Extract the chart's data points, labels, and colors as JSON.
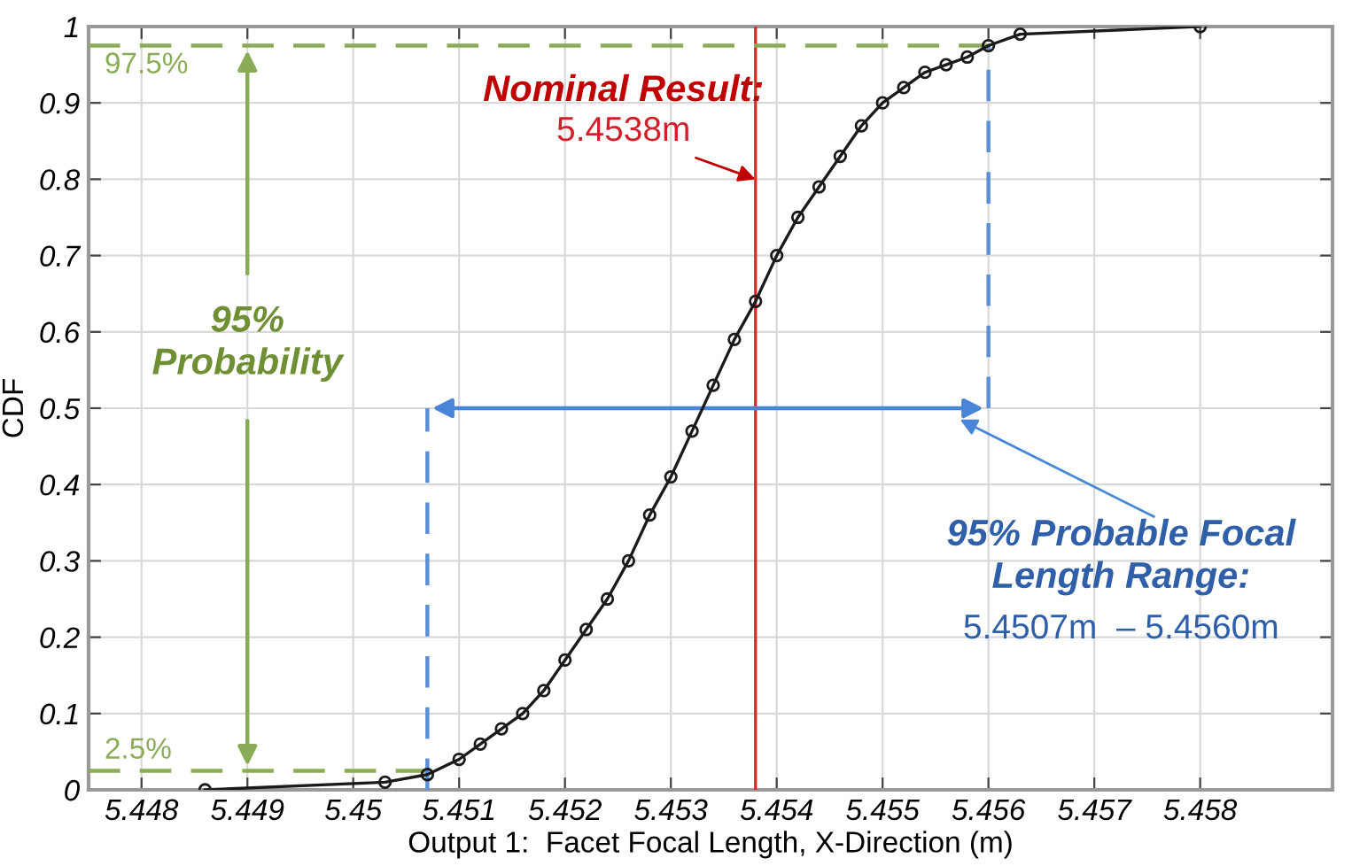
{
  "chart_data": {
    "type": "line",
    "xlabel": "Output 1:  Facet Focal Length, X-Direction (m)",
    "ylabel": "CDF",
    "series": [
      {
        "color": "#1a1a1a",
        "x": [
          5.4486,
          5.4503,
          5.4507,
          5.451,
          5.4512,
          5.4514,
          5.4516,
          5.4518,
          5.452,
          5.4522,
          5.4524,
          5.4526,
          5.4528,
          5.453,
          5.4532,
          5.4534,
          5.4536,
          5.4538,
          5.454,
          5.4542,
          5.4544,
          5.4546,
          5.4548,
          5.455,
          5.4552,
          5.4554,
          5.4556,
          5.4558,
          5.456,
          5.4563,
          5.458
        ],
        "values": [
          0.0,
          0.01,
          0.02,
          0.04,
          0.06,
          0.08,
          0.1,
          0.13,
          0.17,
          0.21,
          0.25,
          0.3,
          0.36,
          0.41,
          0.47,
          0.53,
          0.59,
          0.64,
          0.7,
          0.75,
          0.79,
          0.83,
          0.87,
          0.9,
          0.92,
          0.94,
          0.95,
          0.96,
          0.975,
          0.99,
          1.0
        ]
      }
    ],
    "xlim": [
      5.4475,
      5.45925
    ],
    "xticks": [
      5.448,
      5.449,
      5.45,
      5.451,
      5.452,
      5.453,
      5.454,
      5.455,
      5.456,
      5.457,
      5.458
    ],
    "ylim": [
      0,
      1
    ],
    "yticks": [
      0,
      0.1,
      0.2,
      0.3,
      0.4,
      0.5,
      0.6,
      0.7,
      0.8,
      0.9,
      1
    ],
    "grid": true,
    "marker": "circle",
    "line_style": "solid",
    "ref_lines": [
      {
        "axis": "x",
        "value": 5.4538,
        "color": "#e8262a",
        "line_style": "solid"
      },
      {
        "axis": "y",
        "value": 0.975,
        "label": "97.5%",
        "color": "#8aab57",
        "line_style": "dashed"
      },
      {
        "axis": "y",
        "value": 0.025,
        "label": "2.5%",
        "color": "#8aab57",
        "line_style": "dashed"
      },
      {
        "axis": "x",
        "value": 5.4507,
        "color": "#5b8fd6",
        "line_style": "dashed"
      },
      {
        "axis": "x",
        "value": 5.456,
        "color": "#5b8fd6",
        "line_style": "dashed"
      }
    ],
    "annotations": [
      "Nominal Result:",
      {
        "text": "5.4538m",
        "x": 5.4538,
        "y": 0.8
      },
      "95%\nProbability",
      "95% Probable Focal\nLength Range:",
      "5.4507m  – 5.4560m"
    ]
  }
}
